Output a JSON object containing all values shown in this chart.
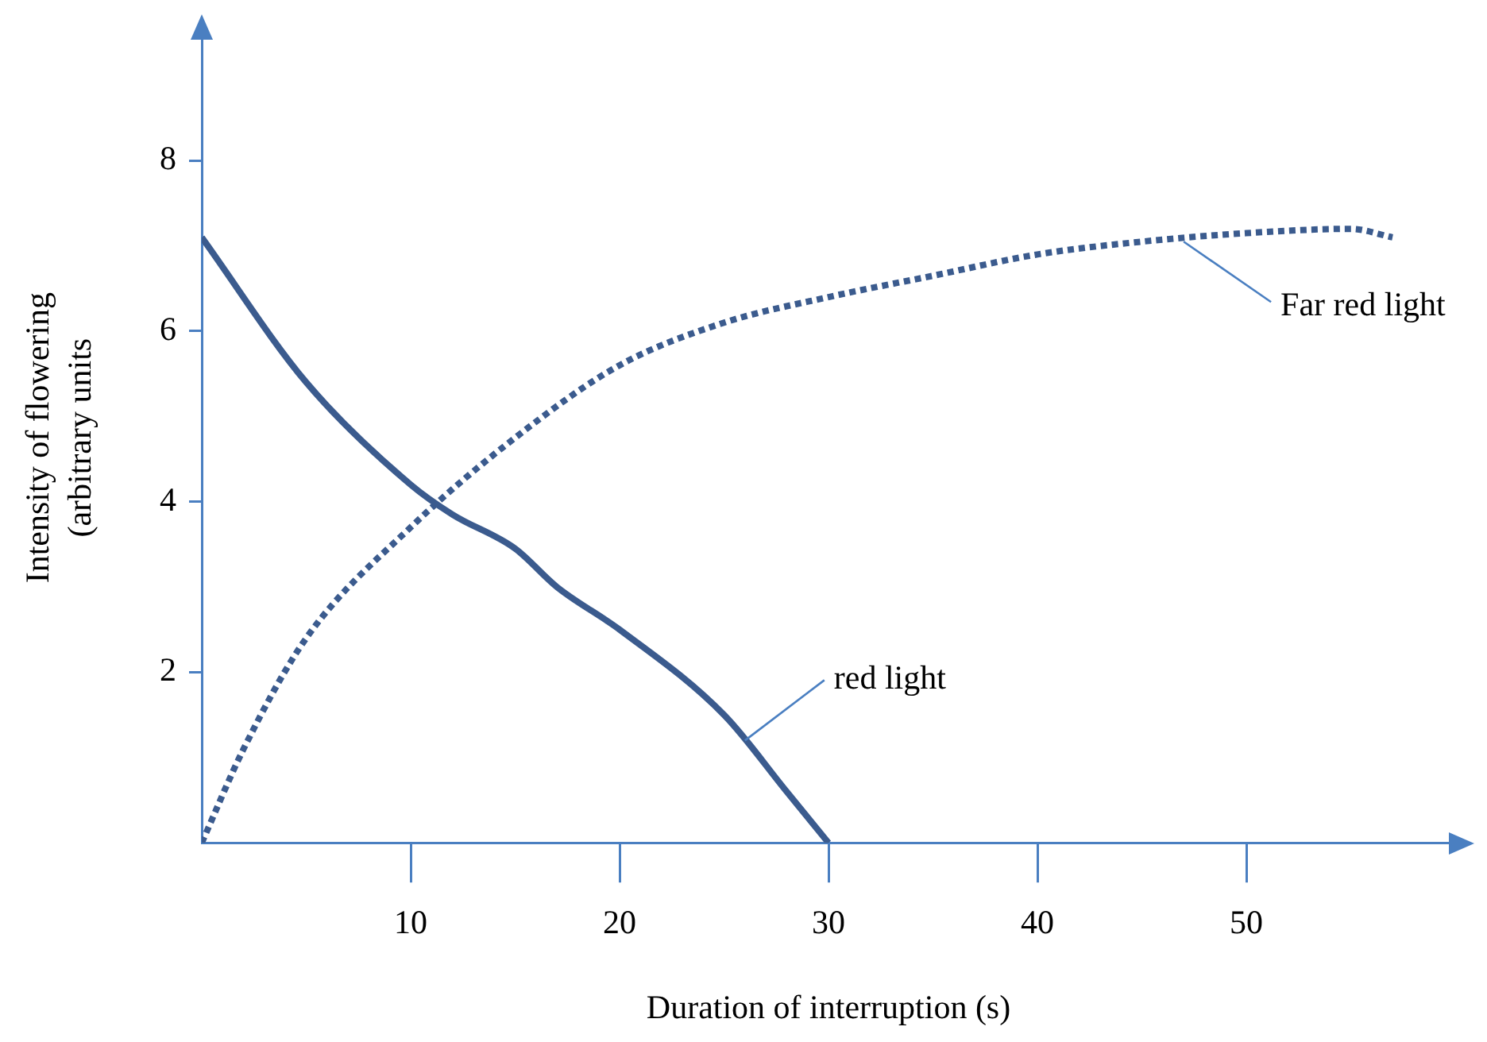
{
  "chart_data": {
    "type": "line",
    "xlabel": "Duration of interruption (s)",
    "ylabel": "Intensity of flowering\n(arbitrary units",
    "xlim": [
      0,
      60
    ],
    "ylim": [
      0,
      9.5
    ],
    "xticks": [
      10,
      20,
      30,
      40,
      50
    ],
    "yticks": [
      2,
      4,
      6,
      8
    ],
    "grid": false,
    "legend": false,
    "marker": "none",
    "series": [
      {
        "color": "#3b5b8e",
        "line_style": "solid",
        "x": [
          0,
          5,
          10,
          12,
          15,
          17,
          20,
          25,
          28,
          30
        ],
        "values": [
          7.1,
          5.4,
          4.2,
          3.85,
          3.45,
          3.0,
          2.5,
          1.5,
          0.6,
          0
        ]
      },
      {
        "color": "#3b5b8e",
        "line_style": "dotted",
        "x": [
          0,
          2,
          5,
          10,
          15,
          20,
          25,
          30,
          35,
          40,
          45,
          50,
          55,
          57
        ],
        "values": [
          0,
          1.1,
          2.4,
          3.7,
          4.75,
          5.6,
          6.1,
          6.4,
          6.65,
          6.9,
          7.05,
          7.15,
          7.2,
          7.1
        ]
      }
    ],
    "annotations": [
      {
        "text": "red light",
        "x": 26,
        "y": 1.2
      },
      {
        "text": "Far red light",
        "x": 47,
        "y": 7.05
      }
    ]
  }
}
